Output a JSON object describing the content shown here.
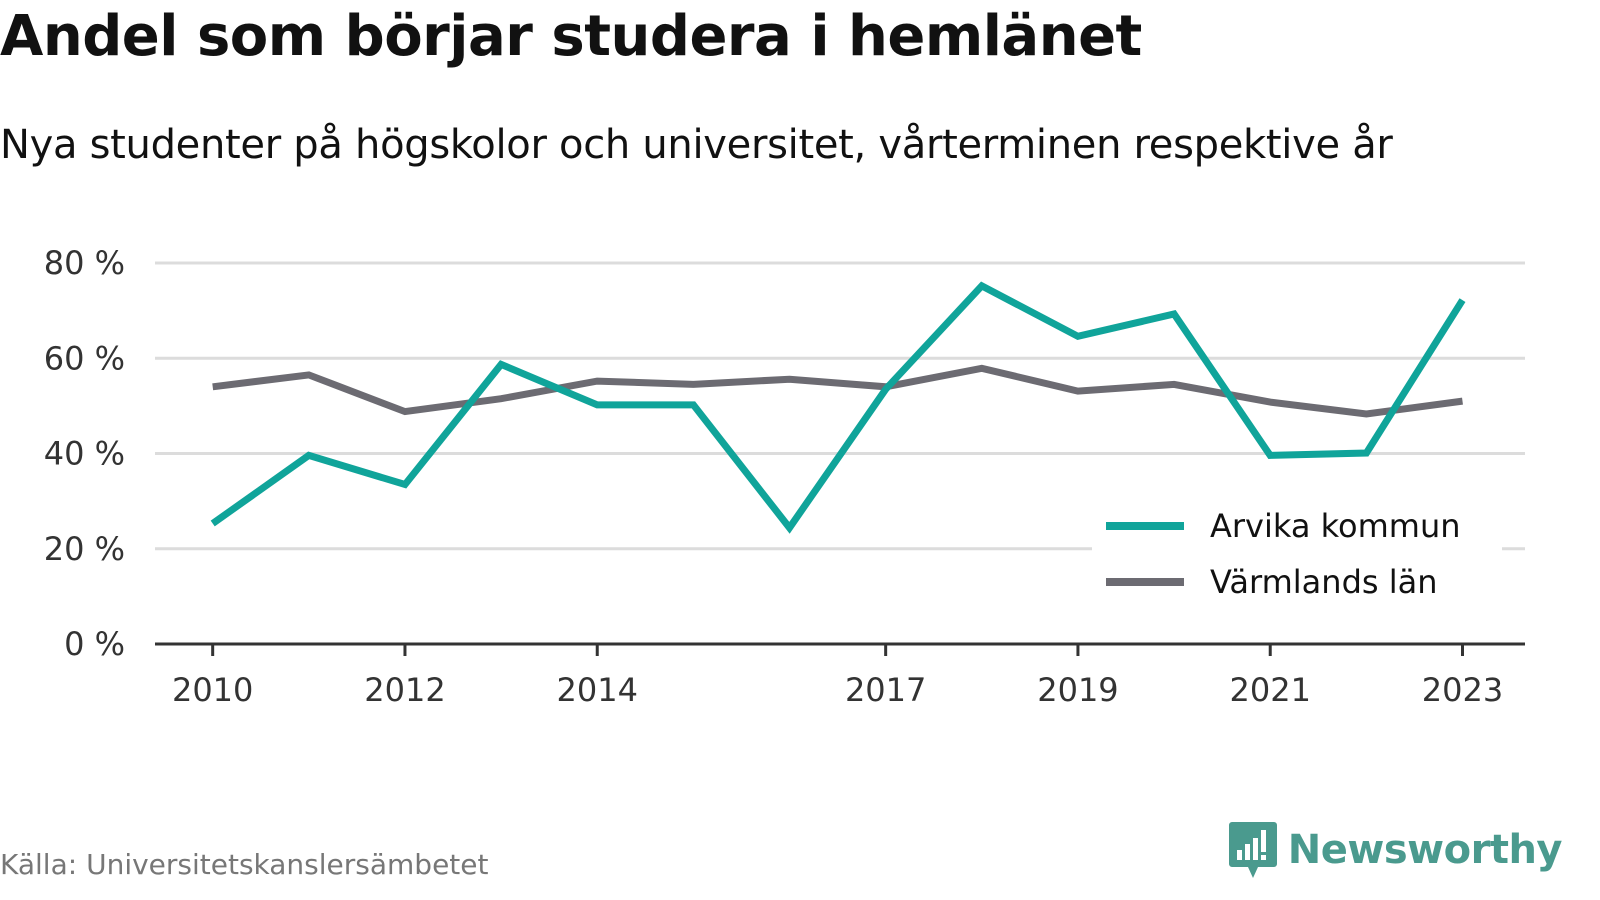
{
  "header": {
    "title": "Andel som börjar studera i hemlänet",
    "subtitle": "Nya studenter på högskolor och universitet, vårterminen respektive år"
  },
  "footer": {
    "source": "Källa: Universitetskanslersämbetet",
    "brand": "Newsworthy"
  },
  "colors": {
    "arvika": "#10a49a",
    "varmland": "#6c6b72",
    "grid": "#dcdcdc",
    "axis": "#333333",
    "brand": "#4a9a8e"
  },
  "icons": {
    "brand": "bar-chart-speech-bubble-icon"
  },
  "chart_data": {
    "type": "line",
    "title": "Andel som börjar studera i hemlänet",
    "subtitle": "Nya studenter på högskolor och universitet, vårterminen respektive år",
    "xlabel": "",
    "ylabel": "",
    "x": [
      2010,
      2011,
      2012,
      2013,
      2014,
      2015,
      2016,
      2017,
      2018,
      2019,
      2020,
      2021,
      2022,
      2023
    ],
    "x_tick_labels": [
      "2010",
      "2012",
      "2014",
      "2017",
      "2019",
      "2021",
      "2023"
    ],
    "y_tick_labels": [
      "0 %",
      "20 %",
      "40 %",
      "60 %",
      "80 %"
    ],
    "y_ticks": [
      0,
      20,
      40,
      60,
      80
    ],
    "ylim": [
      0,
      80
    ],
    "xlim": [
      2009.4,
      2023.65
    ],
    "grid": true,
    "legend_position": "bottom-right",
    "series": [
      {
        "name": "Arvika kommun",
        "color": "#10a49a",
        "values": [
          25.3,
          39.6,
          33.5,
          58.7,
          50.2,
          50.2,
          24.4,
          53.5,
          75.2,
          64.6,
          69.3,
          39.6,
          40.1,
          72.2
        ]
      },
      {
        "name": "Värmlands län",
        "color": "#6c6b72",
        "values": [
          54.0,
          56.5,
          48.8,
          51.5,
          55.2,
          54.5,
          55.6,
          54.0,
          57.9,
          53.1,
          54.5,
          50.8,
          48.3,
          51.0
        ]
      }
    ]
  }
}
